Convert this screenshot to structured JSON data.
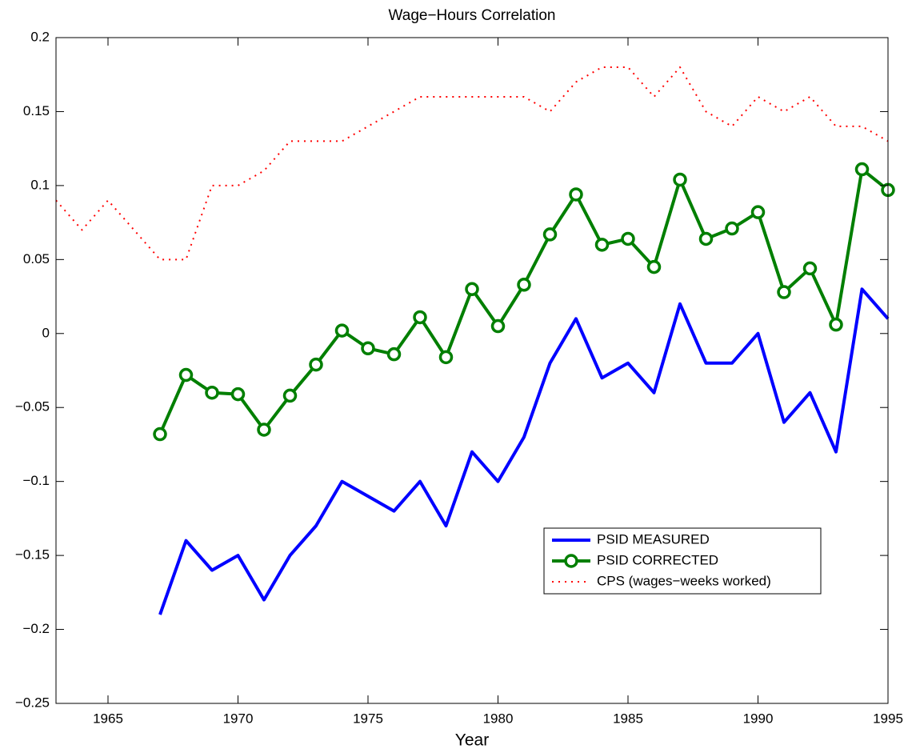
{
  "chart_data": {
    "type": "line",
    "title": "Wage−Hours Correlation",
    "x_label": "Year",
    "xlim": [
      1963,
      1995
    ],
    "xticks": [
      1965,
      1970,
      1975,
      1980,
      1985,
      1990,
      1995
    ],
    "ylim": [
      -0.25,
      0.2
    ],
    "yticks": [
      {
        "value": -0.25,
        "label": "−0.25"
      },
      {
        "value": -0.2,
        "label": "−0.2"
      },
      {
        "value": -0.15,
        "label": "−0.15"
      },
      {
        "value": -0.1,
        "label": "−0.1"
      },
      {
        "value": -0.05,
        "label": "−0.05"
      },
      0,
      0.05,
      0.1,
      0.15,
      0.2
    ],
    "series": [
      {
        "name": "PSID MEASURED",
        "color": "#0000ff",
        "style": "solid",
        "marker": "none",
        "x": [
          1967,
          1968,
          1969,
          1970,
          1971,
          1972,
          1973,
          1974,
          1975,
          1976,
          1977,
          1978,
          1979,
          1980,
          1981,
          1982,
          1983,
          1984,
          1985,
          1986,
          1987,
          1988,
          1989,
          1990,
          1991,
          1992,
          1993,
          1994,
          1995
        ],
        "values": [
          -0.19,
          -0.14,
          -0.16,
          -0.15,
          -0.18,
          -0.15,
          -0.13,
          -0.1,
          -0.11,
          -0.12,
          -0.1,
          -0.13,
          -0.08,
          -0.1,
          -0.07,
          -0.02,
          0.01,
          -0.03,
          -0.02,
          -0.04,
          0.02,
          -0.02,
          -0.02,
          0.0,
          -0.06,
          -0.04,
          -0.08,
          0.03,
          0.01
        ]
      },
      {
        "name": "PSID CORRECTED",
        "color": "#007f00",
        "style": "solid",
        "marker": "circle",
        "x": [
          1967,
          1968,
          1969,
          1970,
          1971,
          1972,
          1973,
          1974,
          1975,
          1976,
          1977,
          1978,
          1979,
          1980,
          1981,
          1982,
          1983,
          1984,
          1985,
          1986,
          1987,
          1988,
          1989,
          1990,
          1991,
          1992,
          1993,
          1994,
          1995
        ],
        "values": [
          -0.068,
          -0.028,
          -0.04,
          -0.041,
          -0.065,
          -0.042,
          -0.021,
          0.002,
          -0.01,
          -0.014,
          0.011,
          -0.016,
          0.03,
          0.005,
          0.033,
          0.067,
          0.094,
          0.06,
          0.064,
          0.045,
          0.104,
          0.064,
          0.071,
          0.082,
          0.028,
          0.044,
          0.006,
          0.111,
          0.097
        ]
      },
      {
        "name": "CPS (wages−weeks worked)",
        "color": "#ff0000",
        "style": "dotted",
        "marker": "none",
        "x": [
          1963,
          1964,
          1965,
          1966,
          1967,
          1968,
          1969,
          1970,
          1971,
          1972,
          1973,
          1974,
          1975,
          1976,
          1977,
          1978,
          1979,
          1980,
          1981,
          1982,
          1983,
          1984,
          1985,
          1986,
          1987,
          1988,
          1989,
          1990,
          1991,
          1992,
          1993,
          1994,
          1995
        ],
        "values": [
          0.09,
          0.07,
          0.09,
          0.07,
          0.05,
          0.05,
          0.1,
          0.1,
          0.11,
          0.13,
          0.13,
          0.13,
          0.14,
          0.15,
          0.16,
          0.16,
          0.16,
          0.16,
          0.16,
          0.15,
          0.17,
          0.18,
          0.18,
          0.16,
          0.18,
          0.15,
          0.14,
          0.16,
          0.15,
          0.16,
          0.14,
          0.14,
          0.13
        ]
      }
    ]
  }
}
